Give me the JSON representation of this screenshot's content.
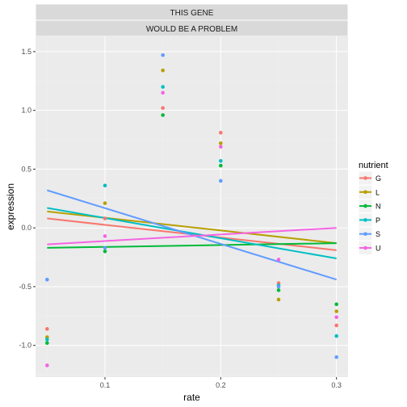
{
  "chart_data": {
    "type": "scatter",
    "facet_strips": [
      "THIS GENE",
      "WOULD BE A PROBLEM"
    ],
    "xlabel": "rate",
    "ylabel": "expression",
    "xlim": [
      0.04,
      0.31
    ],
    "ylim": [
      -1.27,
      1.63
    ],
    "x_ticks": [
      0.1,
      0.2,
      0.3
    ],
    "x_tick_labels": [
      "0.1",
      "0.2",
      "0.3"
    ],
    "y_ticks": [
      -1.0,
      -0.5,
      0.0,
      0.5,
      1.0,
      1.5
    ],
    "y_tick_labels": [
      "-1.0",
      "-0.5",
      "0.0",
      "0.5",
      "1.0",
      "1.5"
    ],
    "grid": true,
    "background": "#ebebeb",
    "legend": {
      "title": "nutrient",
      "placement": "right"
    },
    "series": [
      {
        "name": "G",
        "color": "#f8766d",
        "points": [
          [
            0.05,
            -0.86
          ],
          [
            0.1,
            0.08
          ],
          [
            0.15,
            1.02
          ],
          [
            0.2,
            0.81
          ],
          [
            0.25,
            -0.47
          ],
          [
            0.3,
            -0.83
          ]
        ],
        "fit": [
          [
            0.05,
            0.08
          ],
          [
            0.3,
            -0.19
          ]
        ]
      },
      {
        "name": "L",
        "color": "#b79f00",
        "points": [
          [
            0.05,
            -0.93
          ],
          [
            0.1,
            0.21
          ],
          [
            0.15,
            1.34
          ],
          [
            0.2,
            0.72
          ],
          [
            0.25,
            -0.61
          ],
          [
            0.3,
            -0.71
          ]
        ],
        "fit": [
          [
            0.05,
            0.14
          ],
          [
            0.3,
            -0.13
          ]
        ]
      },
      {
        "name": "N",
        "color": "#00ba38",
        "points": [
          [
            0.05,
            -0.98
          ],
          [
            0.1,
            -0.2
          ],
          [
            0.15,
            0.96
          ],
          [
            0.2,
            0.53
          ],
          [
            0.25,
            -0.53
          ],
          [
            0.3,
            -0.65
          ]
        ],
        "fit": [
          [
            0.05,
            -0.17
          ],
          [
            0.3,
            -0.13
          ]
        ]
      },
      {
        "name": "P",
        "color": "#00bfc4",
        "points": [
          [
            0.05,
            -0.95
          ],
          [
            0.1,
            0.36
          ],
          [
            0.15,
            1.2
          ],
          [
            0.2,
            0.57
          ],
          [
            0.25,
            -0.49
          ],
          [
            0.3,
            -0.92
          ]
        ],
        "fit": [
          [
            0.05,
            0.17
          ],
          [
            0.3,
            -0.26
          ]
        ]
      },
      {
        "name": "S",
        "color": "#619cff",
        "points": [
          [
            0.05,
            -0.44
          ],
          [
            0.1,
            -0.17
          ],
          [
            0.15,
            1.47
          ],
          [
            0.2,
            0.4
          ],
          [
            0.25,
            -0.5
          ],
          [
            0.3,
            -1.1
          ]
        ],
        "fit": [
          [
            0.05,
            0.32
          ],
          [
            0.3,
            -0.44
          ]
        ]
      },
      {
        "name": "U",
        "color": "#f564e3",
        "points": [
          [
            0.05,
            -1.17
          ],
          [
            0.1,
            -0.07
          ],
          [
            0.15,
            1.15
          ],
          [
            0.2,
            0.69
          ],
          [
            0.25,
            -0.27
          ],
          [
            0.3,
            -0.76
          ]
        ],
        "fit": [
          [
            0.05,
            -0.14
          ],
          [
            0.3,
            0.0
          ]
        ]
      }
    ]
  }
}
